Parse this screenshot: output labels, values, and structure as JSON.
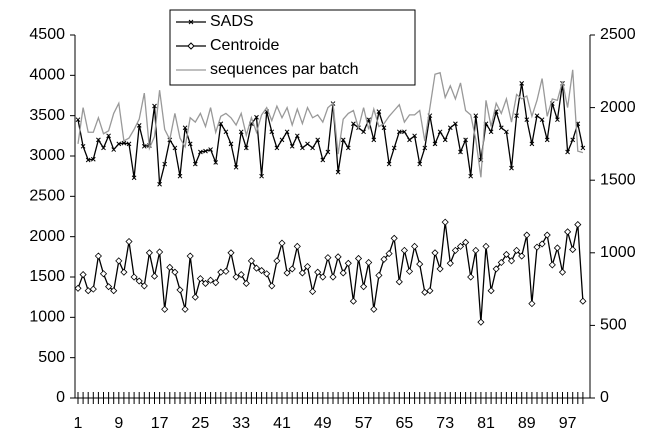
{
  "chart_data": {
    "type": "line",
    "categories": [
      1,
      null,
      null,
      null,
      null,
      null,
      null,
      null,
      9,
      null,
      null,
      null,
      null,
      null,
      null,
      null,
      17,
      null,
      null,
      null,
      null,
      null,
      null,
      null,
      25,
      null,
      null,
      null,
      null,
      null,
      null,
      null,
      33,
      null,
      null,
      null,
      null,
      null,
      null,
      null,
      41,
      null,
      null,
      null,
      null,
      null,
      null,
      null,
      49,
      null,
      null,
      null,
      null,
      null,
      null,
      null,
      57,
      null,
      null,
      null,
      null,
      null,
      null,
      null,
      65,
      null,
      null,
      null,
      null,
      null,
      null,
      null,
      73,
      null,
      null,
      null,
      null,
      null,
      null,
      null,
      81,
      null,
      null,
      null,
      null,
      null,
      null,
      null,
      89,
      null,
      null,
      null,
      null,
      null,
      null,
      null,
      97,
      null,
      null,
      null
    ],
    "ylim": [
      0,
      4500
    ],
    "yticks": [
      0,
      500,
      1000,
      1500,
      2000,
      2500,
      3000,
      3500,
      4000,
      4500
    ],
    "y2lim": [
      0,
      2500
    ],
    "y2ticks": [
      0,
      500,
      1000,
      1500,
      2000,
      2500
    ],
    "series": [
      {
        "name": "SADS",
        "color": "#000000",
        "marker": "x",
        "values": [
          3450,
          3120,
          2950,
          2960,
          3200,
          3100,
          3250,
          3080,
          3150,
          3160,
          3150,
          2730,
          3380,
          3120,
          3130,
          3620,
          2650,
          2900,
          3200,
          3100,
          2750,
          3350,
          3150,
          2900,
          3050,
          3060,
          3080,
          2920,
          3400,
          3300,
          3150,
          2860,
          3300,
          3100,
          3400,
          3480,
          2750,
          3550,
          3300,
          3100,
          3200,
          3300,
          3120,
          3250,
          3100,
          3150,
          3100,
          3200,
          2950,
          3050,
          3650,
          2800,
          3200,
          3100,
          3400,
          3350,
          3300,
          3450,
          3200,
          3550,
          3350,
          2900,
          3100,
          3300,
          3300,
          3200,
          3250,
          2900,
          3100,
          3500,
          3150,
          3300,
          3200,
          3350,
          3400,
          3050,
          3200,
          2750,
          3500,
          2950,
          3400,
          3300,
          3550,
          3350,
          3300,
          2850,
          3500,
          3900,
          3450,
          3150,
          3500,
          3450,
          3200,
          3650,
          3450,
          3900,
          3050,
          3200,
          3400,
          3100
        ]
      },
      {
        "name": "Centroide",
        "color": "#000000",
        "marker": "diamond",
        "values": [
          1360,
          1530,
          1330,
          1350,
          1760,
          1540,
          1380,
          1330,
          1700,
          1560,
          1940,
          1500,
          1450,
          1390,
          1800,
          1510,
          1810,
          1100,
          1620,
          1560,
          1340,
          1100,
          1760,
          1250,
          1480,
          1420,
          1460,
          1430,
          1560,
          1570,
          1800,
          1500,
          1530,
          1420,
          1700,
          1610,
          1580,
          1540,
          1390,
          1700,
          1920,
          1550,
          1600,
          1880,
          1550,
          1630,
          1320,
          1560,
          1500,
          1740,
          1500,
          1750,
          1550,
          1670,
          1200,
          1730,
          1380,
          1680,
          1100,
          1520,
          1720,
          1790,
          1980,
          1440,
          1830,
          1570,
          1880,
          1660,
          1310,
          1330,
          1800,
          1600,
          2180,
          1670,
          1830,
          1880,
          1930,
          1500,
          1830,
          940,
          1880,
          1330,
          1600,
          1680,
          1780,
          1700,
          1830,
          1760,
          2020,
          1170,
          1870,
          1910,
          2020,
          1650,
          1860,
          1560,
          2060,
          1840,
          2150,
          1200
        ]
      },
      {
        "name": "sequences par  batch",
        "color": "#999999",
        "axis": "y2",
        "values": [
          1750,
          2000,
          1830,
          1830,
          1930,
          1820,
          1840,
          1960,
          2030,
          1770,
          1790,
          1850,
          1920,
          2100,
          1720,
          1800,
          2120,
          1850,
          1780,
          1960,
          1790,
          1730,
          1930,
          1900,
          1960,
          1870,
          2000,
          1830,
          1940,
          1960,
          1930,
          1880,
          1960,
          1810,
          1930,
          1830,
          1950,
          2000,
          1910,
          2010,
          1930,
          2000,
          1880,
          1990,
          1890,
          2000,
          1930,
          1950,
          1900,
          2000,
          2030,
          1680,
          1920,
          1960,
          1980,
          1860,
          2000,
          1850,
          1990,
          1870,
          1890,
          1940,
          1980,
          2020,
          1900,
          1950,
          1950,
          1980,
          1770,
          2000,
          2230,
          2240,
          2070,
          2150,
          2060,
          2170,
          1980,
          1950,
          1780,
          1520,
          2050,
          1870,
          2030,
          1960,
          2060,
          1900,
          2090,
          2060,
          2080,
          1940,
          2050,
          2200,
          1940,
          2060,
          2050,
          2180,
          2000,
          2260,
          1700,
          1690
        ]
      }
    ]
  }
}
